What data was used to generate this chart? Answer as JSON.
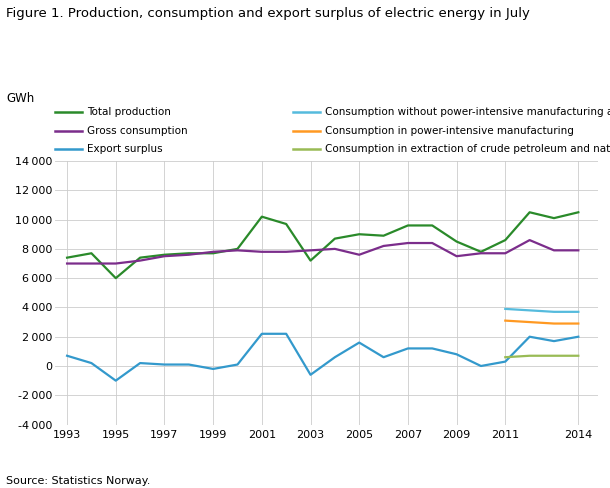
{
  "title": "Figure 1. Production, consumption and export surplus of electric energy in July",
  "ylabel": "GWh",
  "source": "Source: Statistics Norway.",
  "years": [
    1993,
    1994,
    1995,
    1996,
    1997,
    1998,
    1999,
    2000,
    2001,
    2002,
    2003,
    2004,
    2005,
    2006,
    2007,
    2008,
    2009,
    2010,
    2011,
    2012,
    2013,
    2014
  ],
  "total_production": [
    7400,
    7700,
    6000,
    7400,
    7600,
    7700,
    7700,
    8000,
    10200,
    9700,
    7200,
    8700,
    9000,
    8900,
    9600,
    9600,
    8500,
    7800,
    8600,
    10500,
    10100,
    10500
  ],
  "gross_consumption": [
    7000,
    7000,
    7000,
    7200,
    7500,
    7600,
    7800,
    7900,
    7800,
    7800,
    7900,
    8000,
    7600,
    8200,
    8400,
    8400,
    7500,
    7700,
    7700,
    8600,
    7900,
    7900
  ],
  "export_surplus": [
    700,
    200,
    -1000,
    200,
    100,
    100,
    -200,
    100,
    2200,
    2200,
    -600,
    600,
    1600,
    600,
    1200,
    1200,
    800,
    0,
    300,
    2000,
    1700,
    2000
  ],
  "consumption_without_power": [
    null,
    null,
    null,
    null,
    null,
    null,
    null,
    null,
    null,
    null,
    null,
    null,
    null,
    null,
    null,
    null,
    null,
    null,
    3900,
    3800,
    3700,
    3700
  ],
  "consumption_power_intensive": [
    null,
    null,
    null,
    null,
    null,
    null,
    null,
    null,
    null,
    null,
    null,
    null,
    null,
    null,
    null,
    null,
    null,
    null,
    3100,
    3000,
    2900,
    2900
  ],
  "consumption_extraction": [
    null,
    null,
    null,
    null,
    null,
    null,
    null,
    null,
    null,
    null,
    null,
    null,
    null,
    null,
    null,
    null,
    null,
    null,
    600,
    700,
    700,
    700
  ],
  "colors": {
    "total_production": "#2a8a2a",
    "gross_consumption": "#7b2d8b",
    "export_surplus": "#3399cc",
    "consumption_without_power": "#55bbdd",
    "consumption_power_intensive": "#ff9922",
    "consumption_extraction": "#99bb55"
  },
  "ylim": [
    -4000,
    14000
  ],
  "yticks": [
    -4000,
    -2000,
    0,
    2000,
    4000,
    6000,
    8000,
    10000,
    12000,
    14000
  ],
  "xticks": [
    1993,
    1995,
    1997,
    1999,
    2001,
    2003,
    2005,
    2007,
    2009,
    2011,
    2014
  ],
  "xlim": [
    1992.5,
    2014.8
  ],
  "legend_left": [
    {
      "label": "Total production",
      "color": "#2a8a2a"
    },
    {
      "label": "Gross consumption",
      "color": "#7b2d8b"
    },
    {
      "label": "Export surplus",
      "color": "#3399cc"
    }
  ],
  "legend_right": [
    {
      "label": "Consumption without power-intensive manufacturing and extraction",
      "color": "#55bbdd"
    },
    {
      "label": "Consumption in power-intensive manufacturing",
      "color": "#ff9922"
    },
    {
      "label": "Consumption in extraction of crude petroleum and natural gas",
      "color": "#99bb55"
    }
  ]
}
